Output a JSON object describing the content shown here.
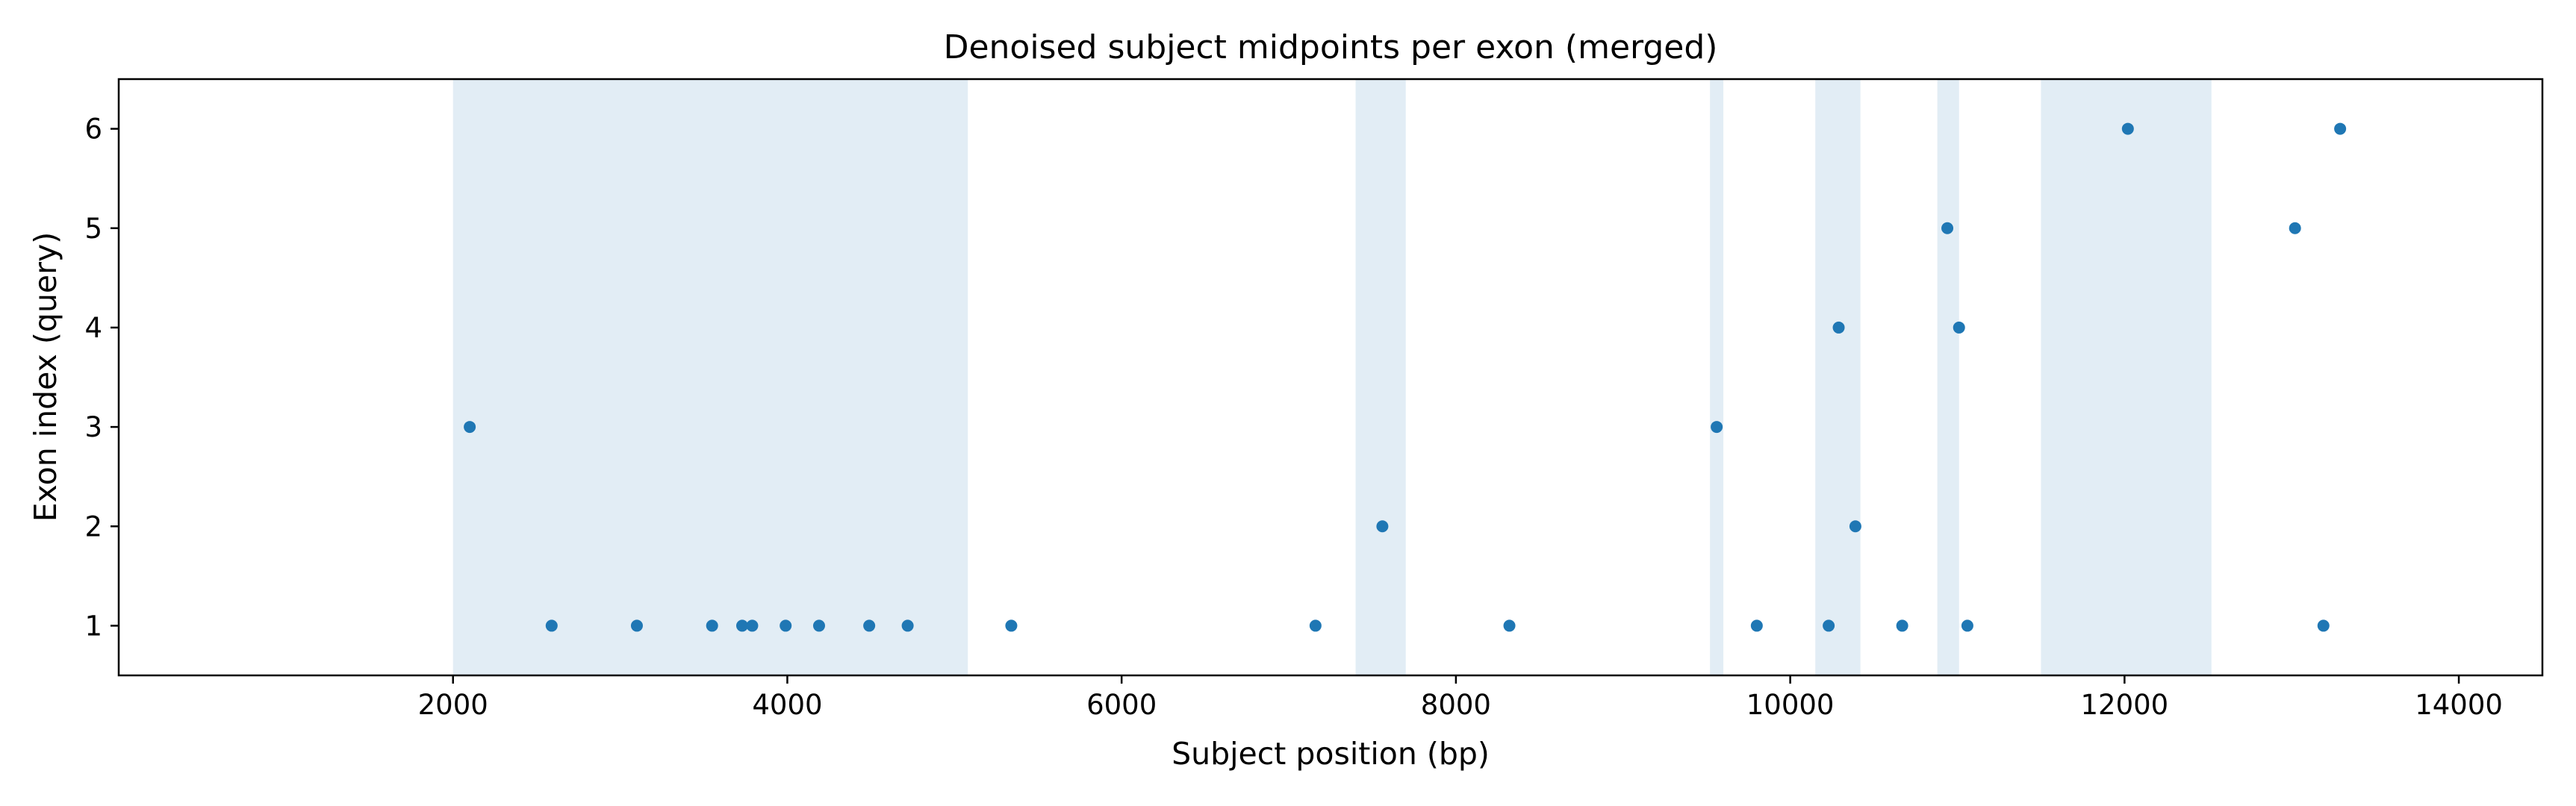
{
  "chart_data": {
    "type": "scatter",
    "title": "Denoised subject midpoints per exon (merged)",
    "xlabel": "Subject position (bp)",
    "ylabel": "Exon index (query)",
    "xlim": [
      0,
      14500
    ],
    "ylim": [
      0.5,
      6.5
    ],
    "xticks": [
      2000,
      4000,
      6000,
      8000,
      10000,
      12000,
      14000
    ],
    "yticks": [
      1,
      2,
      3,
      4,
      5,
      6
    ],
    "grid": false,
    "point_color": "#1f77b4",
    "band_color": "#e2edf5",
    "shaded_regions": [
      [
        2000,
        5080
      ],
      [
        7400,
        7700
      ],
      [
        9520,
        9600
      ],
      [
        10150,
        10420
      ],
      [
        10880,
        11010
      ],
      [
        11500,
        12520
      ]
    ],
    "points": [
      {
        "x": 2100,
        "y": 3
      },
      {
        "x": 2590,
        "y": 1
      },
      {
        "x": 3100,
        "y": 1
      },
      {
        "x": 3550,
        "y": 1
      },
      {
        "x": 3730,
        "y": 1
      },
      {
        "x": 3790,
        "y": 1
      },
      {
        "x": 3990,
        "y": 1
      },
      {
        "x": 4190,
        "y": 1
      },
      {
        "x": 4490,
        "y": 1
      },
      {
        "x": 4720,
        "y": 1
      },
      {
        "x": 5340,
        "y": 1
      },
      {
        "x": 7160,
        "y": 1
      },
      {
        "x": 7560,
        "y": 2
      },
      {
        "x": 8320,
        "y": 1
      },
      {
        "x": 9560,
        "y": 3
      },
      {
        "x": 9800,
        "y": 1
      },
      {
        "x": 10230,
        "y": 1
      },
      {
        "x": 10290,
        "y": 4
      },
      {
        "x": 10390,
        "y": 2
      },
      {
        "x": 10670,
        "y": 1
      },
      {
        "x": 10940,
        "y": 5
      },
      {
        "x": 11010,
        "y": 4
      },
      {
        "x": 11060,
        "y": 1
      },
      {
        "x": 12020,
        "y": 6
      },
      {
        "x": 13020,
        "y": 5
      },
      {
        "x": 13190,
        "y": 1
      },
      {
        "x": 13290,
        "y": 6
      }
    ]
  }
}
